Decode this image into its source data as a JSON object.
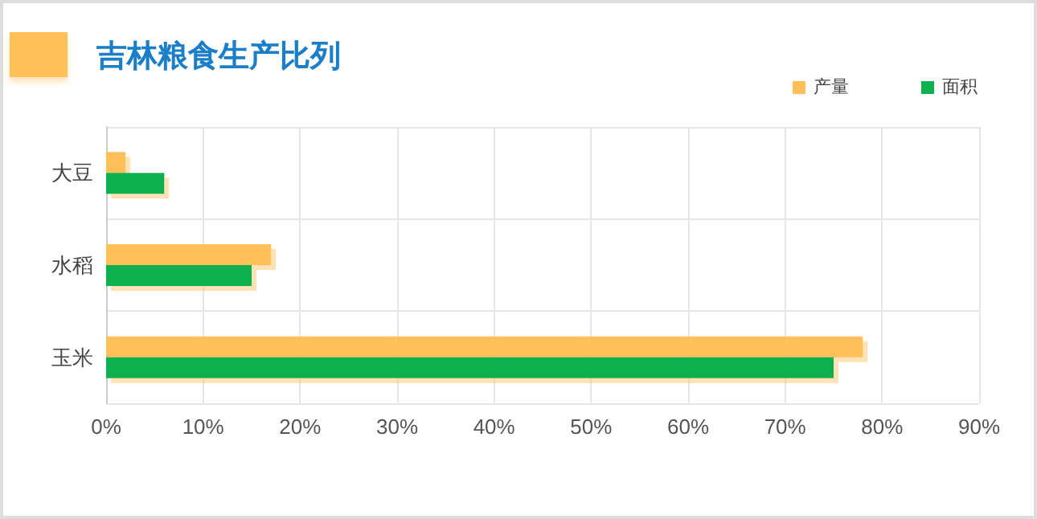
{
  "chart_data": {
    "type": "bar",
    "title": "吉林粮食生产比列",
    "orientation": "horizontal",
    "categories": [
      "大豆",
      "水稻",
      "玉米"
    ],
    "series": [
      {
        "name": "产量",
        "color": "#ffc05a",
        "values": [
          2,
          17,
          78
        ]
      },
      {
        "name": "面积",
        "color": "#0fb050",
        "values": [
          6,
          15,
          75
        ]
      }
    ],
    "xlim": [
      0,
      90
    ],
    "xticks": [
      {
        "value": 0,
        "label": "0%"
      },
      {
        "value": 10,
        "label": "10%"
      },
      {
        "value": 20,
        "label": "20%"
      },
      {
        "value": 30,
        "label": "30%"
      },
      {
        "value": 40,
        "label": "40%"
      },
      {
        "value": 50,
        "label": "50%"
      },
      {
        "value": 60,
        "label": "60%"
      },
      {
        "value": 70,
        "label": "70%"
      },
      {
        "value": 80,
        "label": "80%"
      },
      {
        "value": 90,
        "label": "90%"
      }
    ],
    "grid": true,
    "legend": "top right"
  }
}
